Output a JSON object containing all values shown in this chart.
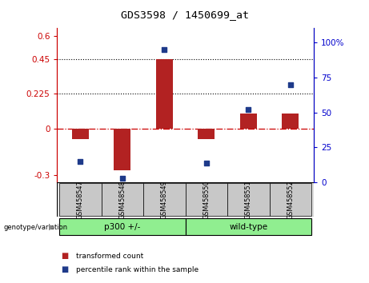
{
  "title": "GDS3598 / 1450699_at",
  "samples": [
    "GSM458547",
    "GSM458548",
    "GSM458549",
    "GSM458550",
    "GSM458551",
    "GSM458552"
  ],
  "transformed_count": [
    -0.07,
    -0.27,
    0.45,
    -0.07,
    0.1,
    0.1
  ],
  "percentile_rank": [
    15,
    3,
    95,
    14,
    52,
    70
  ],
  "group_label": "genotype/variation",
  "groups": [
    {
      "label": "p300 +/-",
      "start": 0,
      "end": 3,
      "color": "#90EE90"
    },
    {
      "label": "wild-type",
      "start": 3,
      "end": 6,
      "color": "#90EE90"
    }
  ],
  "bar_color": "#B22222",
  "dot_color": "#1E3A8A",
  "ylim_left": [
    -0.35,
    0.65
  ],
  "ylim_right": [
    0,
    110
  ],
  "yticks_left": [
    -0.3,
    0.0,
    0.225,
    0.45,
    0.6
  ],
  "ytick_labels_left": [
    "-0.3",
    "0",
    "0.225",
    "0.45",
    "0.6"
  ],
  "yticks_right": [
    0,
    25,
    50,
    75,
    100
  ],
  "ytick_labels_right": [
    "0",
    "25",
    "50",
    "75",
    "100%"
  ],
  "hlines": [
    0.225,
    0.45
  ],
  "zero_line_value": 0.0,
  "legend_items": [
    {
      "label": "transformed count",
      "color": "#B22222"
    },
    {
      "label": "percentile rank within the sample",
      "color": "#1E3A8A"
    }
  ],
  "bar_width": 0.4,
  "sample_box_color": "#c8c8c8",
  "plot_bg": "#ffffff"
}
